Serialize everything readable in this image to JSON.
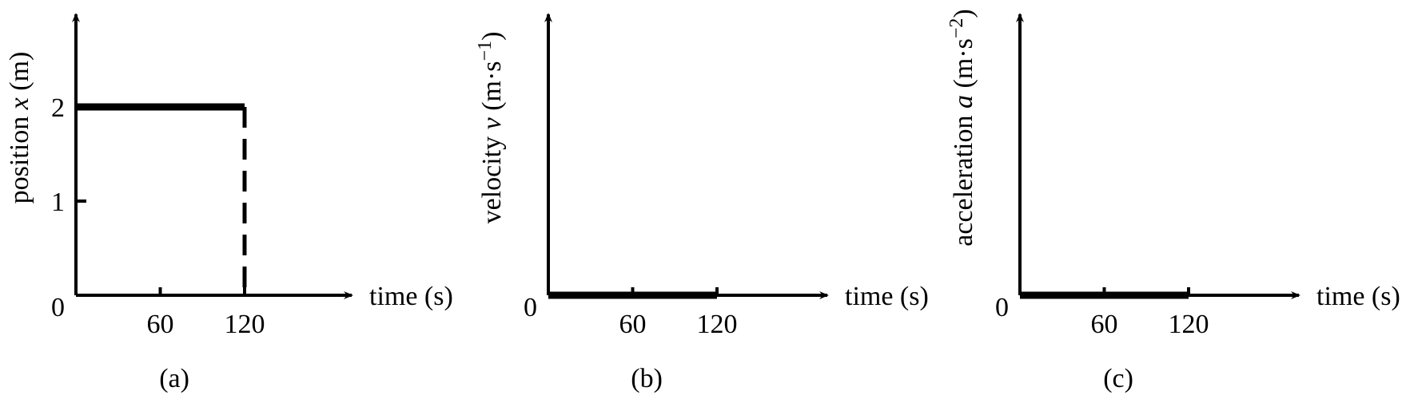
{
  "chart_data": [
    {
      "type": "line",
      "caption": "(a)",
      "xlabel": "time (s)",
      "ylabel": {
        "pre": "position ",
        "var": "x",
        "post": " (m)",
        "sup": ""
      },
      "origin_label": "0",
      "x_ticks": [
        60,
        120
      ],
      "y_ticks": [
        1,
        2
      ],
      "xlim": [
        0,
        150
      ],
      "ylim": [
        0,
        3
      ],
      "series": [
        {
          "style": "solid",
          "x": [
            0,
            120
          ],
          "y": [
            2,
            2
          ]
        },
        {
          "style": "dashed",
          "x": [
            120,
            120
          ],
          "y": [
            2,
            0
          ]
        }
      ]
    },
    {
      "type": "line",
      "caption": "(b)",
      "xlabel": "time (s)",
      "ylabel": {
        "pre": "velocity ",
        "var": "v",
        "post": " (m·s",
        "sup": "−1",
        "close": ")"
      },
      "origin_label": "0",
      "x_ticks": [
        60,
        120
      ],
      "y_ticks": [],
      "xlim": [
        0,
        150
      ],
      "ylim": [
        0,
        3
      ],
      "series": [
        {
          "style": "solid",
          "x": [
            0,
            120
          ],
          "y": [
            0,
            0
          ]
        }
      ]
    },
    {
      "type": "line",
      "caption": "(c)",
      "xlabel": "time (s)",
      "ylabel": {
        "pre": "acceleration ",
        "var": "a",
        "post": " (m·s",
        "sup": "−2",
        "close": ")"
      },
      "origin_label": "0",
      "x_ticks": [
        60,
        120
      ],
      "y_ticks": [],
      "xlim": [
        0,
        150
      ],
      "ylim": [
        0,
        3
      ],
      "series": [
        {
          "style": "solid",
          "x": [
            0,
            120
          ],
          "y": [
            0,
            0
          ]
        }
      ]
    }
  ]
}
